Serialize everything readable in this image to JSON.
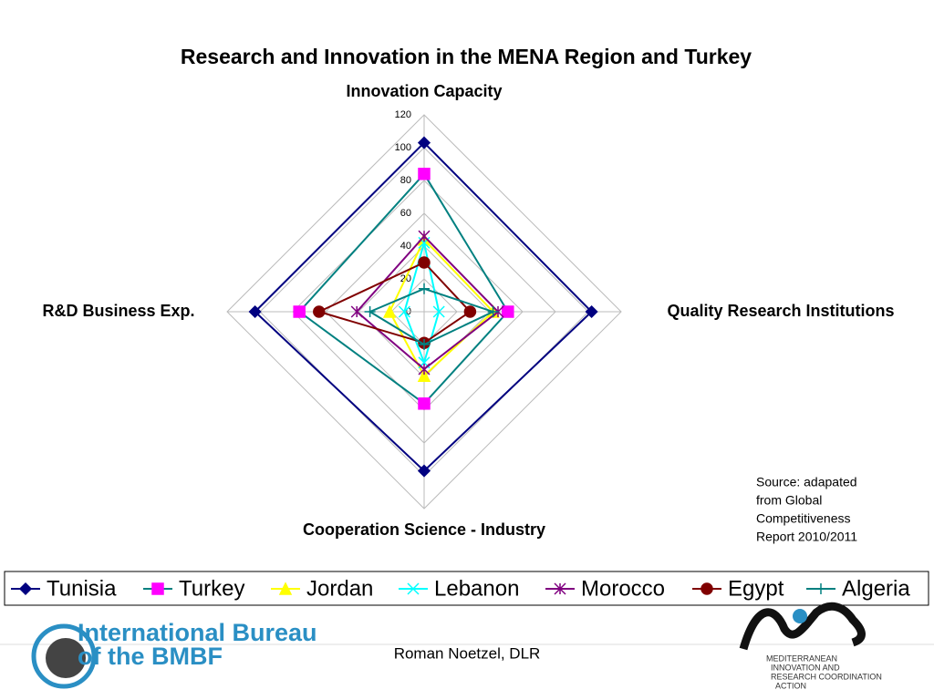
{
  "chart_data": {
    "type": "radar",
    "title": "Research and Innovation in the MENA Region and Turkey",
    "categories": [
      "Innovation Capacity",
      "Quality  Research Institutions",
      "Cooperation Science - Industry",
      "R&D Business Exp."
    ],
    "rlim": [
      0,
      120
    ],
    "rticks": [
      0,
      20,
      40,
      60,
      80,
      100,
      120
    ],
    "grid": true,
    "series": [
      {
        "name": "Tunisia",
        "color": "#000080",
        "marker_color": "#000080",
        "marker": "diamond",
        "values": [
          103,
          102,
          97,
          103
        ]
      },
      {
        "name": "Turkey",
        "color": "#008080",
        "marker_color": "#ff00ff",
        "marker": "square",
        "values": [
          84,
          51,
          56,
          76
        ]
      },
      {
        "name": "Jordan",
        "color": "#ffff00",
        "marker_color": "#ffff00",
        "marker": "triangle",
        "values": [
          44,
          42,
          39,
          21
        ]
      },
      {
        "name": "Lebanon",
        "color": "#00ffff",
        "marker_color": "#00ffff",
        "marker": "x",
        "values": [
          42,
          9,
          31,
          12
        ]
      },
      {
        "name": "Morocco",
        "color": "#800080",
        "marker_color": "#800080",
        "marker": "star",
        "values": [
          46,
          45,
          35,
          41
        ]
      },
      {
        "name": "Egypt",
        "color": "#800000",
        "marker_color": "#800000",
        "marker": "circle",
        "values": [
          30,
          28,
          19,
          64
        ]
      },
      {
        "name": "Algeria",
        "color": "#008080",
        "marker_color": "#008080",
        "marker": "plus",
        "values": [
          14,
          42,
          20,
          33
        ]
      }
    ]
  },
  "source": [
    "Source: adapated",
    "from Global",
    "Competitiveness",
    "Report 2010/2011"
  ],
  "footer": "Roman Noetzel, DLR",
  "logo_left": [
    "International Bureau",
    "of the BMBF"
  ],
  "logo_right": [
    "MEDITERRANEAN",
    "INNOVATION AND",
    "RESEARCH COORDINATION",
    "ACTION"
  ]
}
